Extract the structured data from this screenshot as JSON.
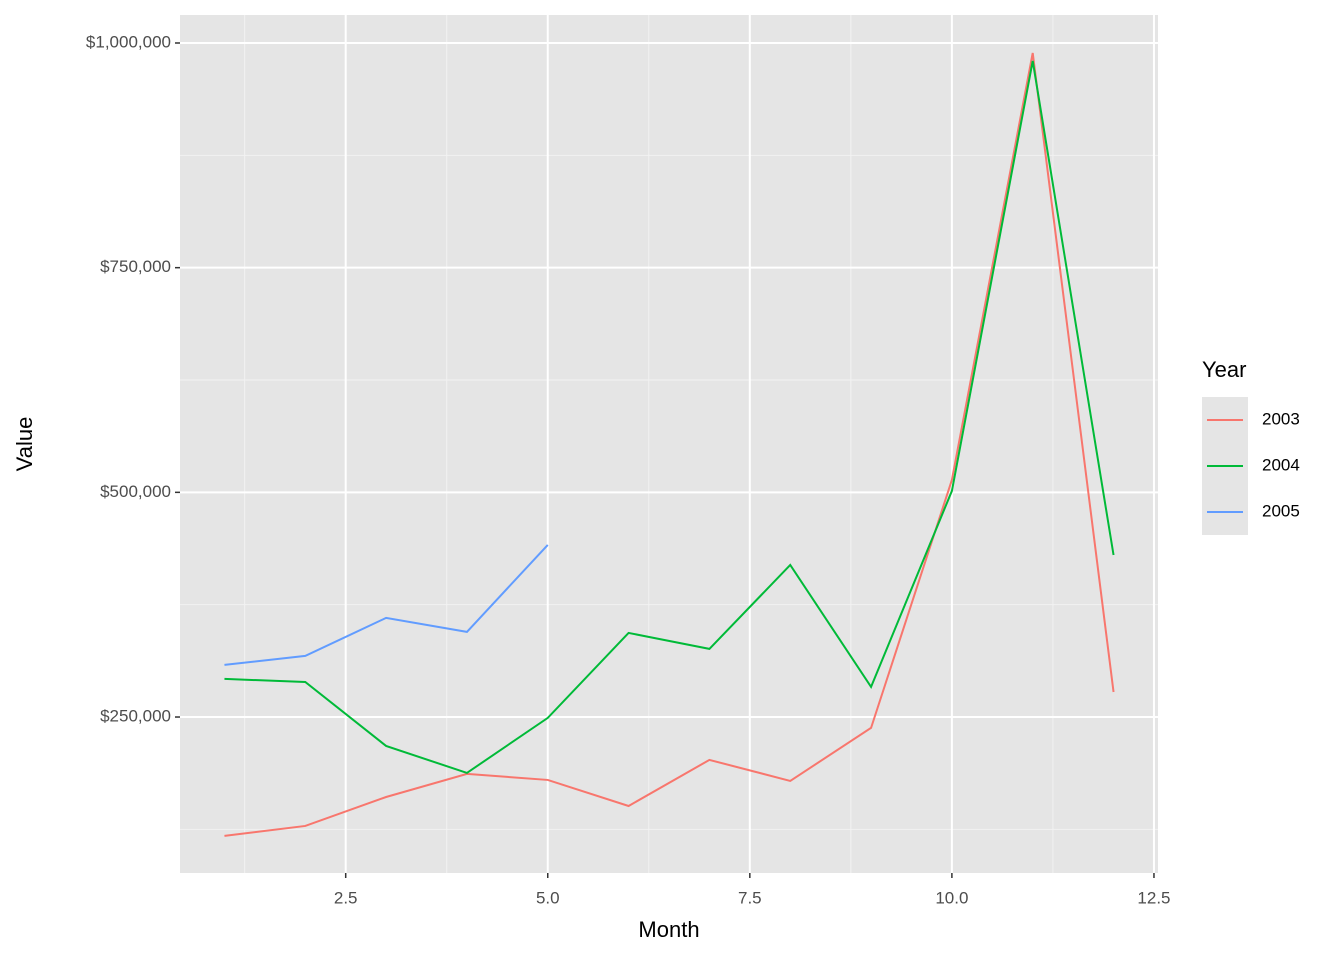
{
  "chart_data": {
    "type": "line",
    "x_label": "Month",
    "y_label": "Value",
    "x": [
      1,
      2,
      3,
      4,
      5,
      6,
      7,
      8,
      9,
      10,
      11,
      12
    ],
    "series": [
      {
        "name": "2003",
        "color": "#F8766D",
        "values": [
          117700,
          128800,
          161000,
          186700,
          180000,
          151000,
          202300,
          178900,
          237900,
          513800,
          988900,
          277900
        ]
      },
      {
        "name": "2004",
        "color": "#00BA38",
        "values": [
          292400,
          289000,
          217800,
          187800,
          249000,
          343600,
          325800,
          419200,
          283500,
          501600,
          980000,
          430300
        ]
      },
      {
        "name": "2005",
        "color": "#619CFF",
        "values": [
          308000,
          318000,
          360300,
          344700,
          441500,
          null,
          null,
          null,
          null,
          null,
          null,
          null
        ]
      }
    ],
    "xlim": [
      0.45,
      12.55
    ],
    "xticks": [
      2.5,
      {
        "value": 5,
        "label": "5.0"
      },
      7.5,
      {
        "value": 10,
        "label": "10.0"
      },
      12.5
    ],
    "ylim": [
      76440,
      1031150
    ],
    "yticks": [
      {
        "value": 250000,
        "label": "$250,000"
      },
      {
        "value": 500000,
        "label": "$500,000"
      },
      {
        "value": 750000,
        "label": "$750,000"
      },
      {
        "value": 1000000,
        "label": "$1,000,000"
      }
    ],
    "legend_title": "Year",
    "legend_position": "right",
    "grid": true
  }
}
